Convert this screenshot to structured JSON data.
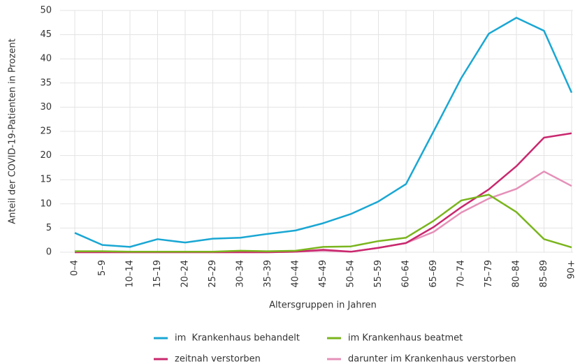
{
  "chart_data": {
    "type": "line",
    "y_label": "Anteil der COVID-19-Patienten in Prozent",
    "x_label": "Altersgruppen in Jahren",
    "categories": [
      "0–4",
      "5–9",
      "10–14",
      "15–19",
      "20–24",
      "25–29",
      "30–34",
      "35–39",
      "40–44",
      "45–49",
      "50–54",
      "55–59",
      "60–64",
      "65–69",
      "70–74",
      "75–79",
      "80–84",
      "85–89",
      "90+"
    ],
    "series": [
      {
        "name": "im  Krankenhaus behandelt",
        "color": "#1aa7d3",
        "values": [
          4.0,
          1.5,
          1.1,
          2.7,
          2.0,
          2.8,
          3.0,
          3.8,
          4.5,
          6.0,
          7.9,
          10.5,
          14.1,
          25.0,
          36.0,
          45.2,
          48.5,
          45.8,
          33.0
        ]
      },
      {
        "name": "im Krankenhaus beatmet",
        "color": "#7ab51d",
        "values": [
          0.2,
          0.2,
          0.1,
          0.1,
          0.1,
          0.1,
          0.3,
          0.2,
          0.3,
          1.1,
          1.2,
          2.3,
          3.0,
          6.5,
          10.7,
          11.9,
          8.3,
          2.7,
          1.0
        ]
      },
      {
        "name": "zeitnah verstorben",
        "color": "#c9286e",
        "values": [
          0,
          0,
          0,
          0,
          0,
          0,
          0,
          0,
          0.1,
          0.5,
          0.1,
          0.9,
          1.9,
          5.2,
          9.3,
          13.0,
          17.8,
          23.7,
          24.6
        ]
      },
      {
        "name": "darunter im Krankenhaus verstorben",
        "color": "#e590b8",
        "values": [
          0,
          0,
          0,
          0,
          0,
          0,
          0,
          0,
          0.1,
          0.3,
          0.1,
          0.9,
          1.9,
          4.2,
          8.2,
          11.1,
          13.1,
          16.7,
          13.7
        ]
      }
    ],
    "ylim": [
      0,
      50
    ],
    "yticks": [
      0,
      5,
      10,
      15,
      20,
      25,
      30,
      35,
      40,
      45,
      50
    ],
    "grid": true
  }
}
